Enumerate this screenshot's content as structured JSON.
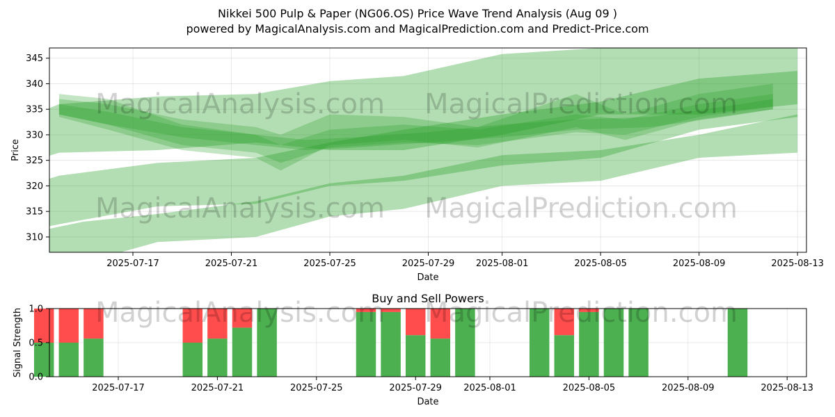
{
  "title_line1": "Nikkei 500 Pulp & Paper (NG06.OS) Price Wave Trend Analysis (Aug 09 )",
  "title_line2": "powered by MagicalAnalysis.com and MagicalPrediction.com and Predict-Price.com",
  "watermarks": [
    "MagicalAnalysis.com",
    "MagicalPrediction.com"
  ],
  "colors": {
    "band": "#2ca02c",
    "buy": "#4caf50",
    "sell": "#ff4c4c",
    "grid": "#b0b0b0"
  },
  "chart_data": [
    {
      "type": "area",
      "xlabel": "Date",
      "ylabel": "Price",
      "x_tick_labels": [
        "2025-07-17",
        "2025-07-21",
        "2025-07-25",
        "2025-07-29",
        "2025-08-01",
        "2025-08-05",
        "2025-08-09",
        "2025-08-13"
      ],
      "y_tick_labels": [
        "310",
        "315",
        "320",
        "325",
        "330",
        "335",
        "340",
        "345"
      ],
      "ylim": [
        307,
        347
      ],
      "xlim": [
        "2025-07-13",
        "2025-08-13"
      ],
      "grid": true,
      "series": [
        {
          "kind": "band",
          "x": [
            "2025-07-13",
            "2025-07-14",
            "2025-07-18",
            "2025-07-22",
            "2025-07-25",
            "2025-07-28",
            "2025-08-01",
            "2025-08-05",
            "2025-08-09",
            "2025-08-13"
          ],
          "upper": [
            334,
            336,
            337.5,
            338,
            340.5,
            341.5,
            345.8,
            347,
            347,
            347
          ],
          "lower": [
            325,
            326.5,
            327,
            328.5,
            327,
            327,
            330,
            334,
            334,
            336
          ]
        },
        {
          "kind": "band",
          "x": [
            "2025-07-13",
            "2025-07-14",
            "2025-07-18",
            "2025-07-22",
            "2025-07-25",
            "2025-07-28",
            "2025-08-01",
            "2025-08-05",
            "2025-08-09",
            "2025-08-13"
          ],
          "upper": [
            320.5,
            322,
            324.5,
            325.5,
            328.5,
            331,
            334,
            336.5,
            341,
            342.5
          ],
          "lower": [
            311.5,
            312.5,
            316,
            316.5,
            320,
            321,
            324,
            325.5,
            331,
            333.5
          ]
        },
        {
          "kind": "band",
          "x": [
            "2025-07-13",
            "2025-07-15",
            "2025-07-18",
            "2025-07-22",
            "2025-07-25",
            "2025-07-28",
            "2025-08-01",
            "2025-08-05",
            "2025-08-09",
            "2025-08-13"
          ],
          "upper": [
            311,
            313,
            314.5,
            317,
            320.5,
            322,
            326,
            327,
            330,
            334
          ],
          "lower": [
            300,
            305,
            309,
            310,
            314,
            315.5,
            320,
            321,
            325.5,
            326.5
          ]
        },
        {
          "kind": "band",
          "x": [
            "2025-07-14",
            "2025-07-16",
            "2025-07-19",
            "2025-07-22",
            "2025-07-23",
            "2025-07-25",
            "2025-07-28",
            "2025-07-31",
            "2025-08-04",
            "2025-08-06",
            "2025-08-09",
            "2025-08-12"
          ],
          "upper": [
            337,
            336,
            333,
            331.5,
            330,
            334,
            333.5,
            331.5,
            338,
            334,
            338,
            340
          ],
          "lower": [
            333.5,
            331,
            327,
            325.5,
            323,
            328,
            329,
            327.5,
            331.5,
            329,
            333,
            335
          ]
        },
        {
          "kind": "band",
          "x": [
            "2025-07-14",
            "2025-07-16",
            "2025-07-19",
            "2025-07-22",
            "2025-07-23",
            "2025-07-25",
            "2025-07-28",
            "2025-07-31",
            "2025-08-04",
            "2025-08-06",
            "2025-08-09",
            "2025-08-12"
          ],
          "upper": [
            338,
            337,
            332,
            330,
            328,
            331,
            332,
            331,
            334,
            333,
            336,
            338
          ],
          "lower": [
            334,
            332,
            328,
            326.5,
            324.5,
            327.5,
            328.5,
            328,
            330.5,
            330,
            333.5,
            335.5
          ]
        },
        {
          "kind": "band",
          "x": [
            "2025-07-14",
            "2025-07-16",
            "2025-07-19",
            "2025-07-22",
            "2025-07-24",
            "2025-07-26",
            "2025-07-29",
            "2025-08-01",
            "2025-08-04",
            "2025-08-07",
            "2025-08-10",
            "2025-08-12"
          ],
          "upper": [
            336,
            334.5,
            331.5,
            330,
            329,
            329.5,
            330.5,
            332,
            333,
            333.5,
            335.5,
            337
          ],
          "lower": [
            334,
            332,
            329.5,
            328,
            327,
            327.5,
            328.5,
            329.5,
            331,
            331.5,
            333.5,
            335
          ]
        }
      ]
    },
    {
      "type": "bar",
      "title": "Buy and Sell Powers",
      "xlabel": "Date",
      "ylabel": "Signal Strength",
      "x_tick_labels": [
        "2025-07-17",
        "2025-07-21",
        "2025-07-25",
        "2025-07-29",
        "2025-08-01",
        "2025-08-05",
        "2025-08-09",
        "2025-08-13"
      ],
      "y_tick_labels": [
        "0.0",
        "0.5",
        "1.0"
      ],
      "ylim": [
        0,
        1
      ],
      "dates": [
        "2025-07-15",
        "2025-07-16",
        "2025-07-17",
        "2025-07-21",
        "2025-07-22",
        "2025-07-23",
        "2025-07-24",
        "2025-07-28",
        "2025-07-29",
        "2025-07-30",
        "2025-07-31",
        "2025-08-01",
        "2025-08-04",
        "2025-08-05",
        "2025-08-06",
        "2025-08-07",
        "2025-08-08",
        "2025-08-12"
      ],
      "series": [
        {
          "name": "Buy",
          "values": [
            0.5,
            0.5,
            0.56,
            0.5,
            0.56,
            0.72,
            1.0,
            0.95,
            0.95,
            0.61,
            0.56,
            1.0,
            1.0,
            0.61,
            0.95,
            1.0,
            1.0,
            1.0
          ]
        },
        {
          "name": "Sell",
          "values": [
            0.5,
            0.5,
            0.44,
            0.5,
            0.44,
            0.28,
            0.0,
            0.05,
            0.05,
            0.39,
            0.44,
            0.0,
            0.0,
            0.39,
            0.05,
            0.0,
            0.0,
            0.0
          ]
        }
      ]
    }
  ]
}
